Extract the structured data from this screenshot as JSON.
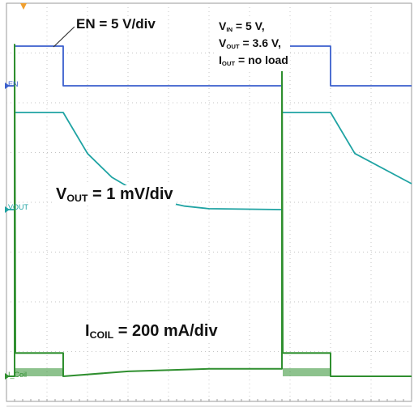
{
  "chart_data": {
    "type": "line",
    "title": "",
    "xlabel": "",
    "ylabel": "",
    "grid": true,
    "grid_divisions": {
      "x": 10,
      "y": 8
    },
    "x_units": "divisions",
    "series": [
      {
        "name": "EN",
        "scale": "5 V/div",
        "color": "#3a5fcd",
        "x": [
          0,
          0.2,
          0.2,
          1.4,
          1.4,
          6.8,
          6.8,
          8.0,
          8.0,
          10
        ],
        "y": [
          0,
          0,
          5,
          5,
          0,
          0,
          5,
          5,
          0,
          0
        ]
      },
      {
        "name": "VOUT",
        "scale": "1 mV/div",
        "color": "#1fa3a3",
        "x": [
          0,
          0.2,
          0.2,
          1.4,
          2.0,
          2.6,
          3.2,
          3.8,
          4.4,
          5.0,
          6.8,
          6.8,
          8.0,
          8.6,
          10
        ],
        "y": [
          0,
          0,
          2.25,
          2.25,
          1.3,
          0.75,
          0.42,
          0.2,
          0.08,
          0.02,
          0,
          2.25,
          2.25,
          1.3,
          0.6
        ]
      },
      {
        "name": "I_Coil",
        "scale": "200 mA/div",
        "color": "#2f8f2f",
        "x": [
          0,
          0.2,
          0.2,
          0.22,
          1.4,
          1.4,
          3.0,
          5.0,
          6.8,
          6.8,
          6.82,
          8.0,
          8.0,
          10
        ],
        "y": [
          0,
          0,
          2000,
          140,
          140,
          0,
          30,
          45,
          45,
          2000,
          140,
          140,
          0,
          0
        ]
      }
    ],
    "channel_labels": [
      "EN",
      "VOUT",
      "I_Coil"
    ],
    "annotations": {
      "en_scale": "EN = 5 V/div",
      "vin": {
        "sym": "V",
        "sub": "IN",
        "rest": " = 5 V,"
      },
      "vout": {
        "sym": "V",
        "sub": "OUT",
        "rest": " = 3.6 V,"
      },
      "iout": {
        "sym": "I",
        "sub": "OUT",
        "rest": " = no load"
      },
      "vout_scale": {
        "sym": "V",
        "sub": "OUT",
        "rest": " = 1 mV/div"
      },
      "icoil_scale": {
        "sym": "I",
        "sub": "COIL",
        "rest": " = 200 mA/div"
      }
    }
  }
}
